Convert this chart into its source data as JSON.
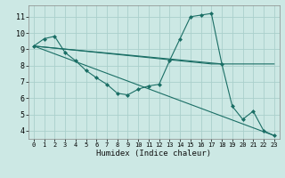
{
  "xlabel": "Humidex (Indice chaleur)",
  "background_color": "#cce8e4",
  "grid_color": "#aacfcb",
  "line_color": "#1a6e65",
  "xlim": [
    -0.5,
    23.5
  ],
  "ylim": [
    3.5,
    11.7
  ],
  "xticks": [
    0,
    1,
    2,
    3,
    4,
    5,
    6,
    7,
    8,
    9,
    10,
    11,
    12,
    13,
    14,
    15,
    16,
    17,
    18,
    19,
    20,
    21,
    22,
    23
  ],
  "yticks": [
    4,
    5,
    6,
    7,
    8,
    9,
    10,
    11
  ],
  "lines": [
    {
      "x": [
        0,
        1,
        2,
        3,
        4,
        5,
        6,
        7,
        8,
        9,
        10,
        11,
        12,
        13,
        14,
        15,
        16,
        17,
        18,
        19,
        20,
        21,
        22,
        23
      ],
      "y": [
        9.2,
        9.65,
        9.8,
        8.8,
        8.3,
        7.7,
        7.25,
        6.85,
        6.3,
        6.2,
        6.55,
        6.75,
        6.85,
        8.3,
        9.65,
        11.0,
        11.1,
        11.2,
        8.1,
        5.5,
        4.7,
        5.2,
        4.0,
        3.7
      ],
      "has_markers": true
    },
    {
      "x": [
        0,
        17,
        18,
        19,
        20,
        21,
        22,
        23
      ],
      "y": [
        9.2,
        8.1,
        8.1,
        8.1,
        8.1,
        8.1,
        8.1,
        8.1
      ],
      "has_markers": false
    },
    {
      "x": [
        0,
        23
      ],
      "y": [
        9.2,
        3.7
      ],
      "has_markers": false
    },
    {
      "x": [
        0,
        18
      ],
      "y": [
        9.2,
        8.1
      ],
      "has_markers": false
    }
  ]
}
